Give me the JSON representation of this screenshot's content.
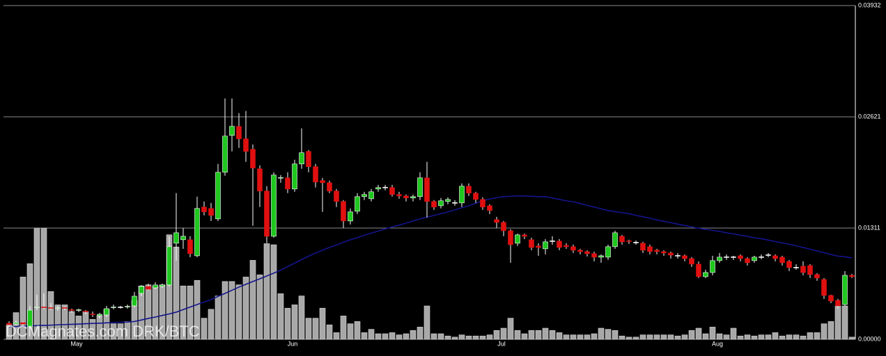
{
  "chart_data": {
    "type": "candlestick",
    "watermark": "DCMagnates.com DRK/BTC",
    "categories": [
      null,
      null,
      null,
      null,
      null,
      null,
      null,
      null,
      null,
      null,
      "May",
      null,
      null,
      null,
      null,
      null,
      null,
      null,
      null,
      null,
      null,
      null,
      null,
      null,
      null,
      null,
      null,
      null,
      null,
      null,
      null,
      null,
      null,
      null,
      null,
      null,
      null,
      null,
      null,
      null,
      null,
      "Jun",
      null,
      null,
      null,
      null,
      null,
      null,
      null,
      null,
      null,
      null,
      null,
      null,
      null,
      null,
      null,
      null,
      null,
      null,
      null,
      null,
      null,
      null,
      null,
      null,
      null,
      null,
      null,
      null,
      null,
      "Jul",
      null,
      null,
      null,
      null,
      null,
      null,
      null,
      null,
      null,
      null,
      null,
      null,
      null,
      null,
      null,
      null,
      null,
      null,
      null,
      null,
      null,
      null,
      null,
      null,
      null,
      null,
      null,
      null,
      null,
      null,
      "Aug",
      null,
      null,
      null,
      null,
      null,
      null,
      null,
      null,
      null,
      null,
      null,
      null,
      null,
      null,
      null,
      null,
      null,
      null,
      null
    ],
    "open": [
      0.00189,
      0.0018,
      0.00197,
      0.00148,
      0.00369,
      0.00377,
      0.00369,
      0.00361,
      0.00369,
      0.00344,
      0.00336,
      0.00328,
      0.00295,
      0.00279,
      0.00287,
      0.00369,
      0.00377,
      0.00377,
      0.00394,
      0.00541,
      0.00623,
      0.00607,
      0.00623,
      0.0064,
      0.01132,
      0.01173,
      0.01173,
      0.00984,
      0.01558,
      0.01542,
      0.01419,
      0.01968,
      0.02403,
      0.02509,
      0.02362,
      0.02239,
      0.02009,
      0.01747,
      0.01214,
      0.01894,
      0.01902,
      0.01771,
      0.02066,
      0.02214,
      0.02034,
      0.0187,
      0.01845,
      0.01747,
      0.01624,
      0.01394,
      0.01509,
      0.01681,
      0.01656,
      0.01771,
      0.01788,
      0.01788,
      0.01706,
      0.01689,
      0.01665,
      0.01681,
      0.01902,
      0.01624,
      0.01574,
      0.01624,
      0.01607,
      0.01607,
      0.01804,
      0.01722,
      0.01648,
      0.01574,
      0.0141,
      0.01378,
      0.01279,
      0.01132,
      0.0123,
      0.01173,
      0.01099,
      0.01066,
      0.01156,
      0.01156,
      0.01107,
      0.01091,
      0.0105,
      0.01033,
      0.01009,
      0.00968,
      0.00968,
      0.01091,
      0.01214,
      0.01156,
      0.0114,
      0.01132,
      0.01091,
      0.0105,
      0.01033,
      0.01017,
      0.00984,
      0.00984,
      0.00951,
      0.00886,
      0.00738,
      0.00787,
      0.00927,
      0.00968,
      0.00968,
      0.00984,
      0.00951,
      0.00927,
      0.00968,
      0.00992,
      0.00984,
      0.00968,
      0.00918,
      0.00845,
      0.00861,
      0.00869,
      0.00763,
      0.00705,
      0.00517,
      0.00459,
      0.0041,
      0.00754
    ],
    "high": [
      0.00213,
      0.00221,
      0.00213,
      0.00394,
      0.00525,
      0.00541,
      0.00426,
      0.00394,
      0.00385,
      0.00361,
      0.00361,
      0.00344,
      0.00328,
      0.00312,
      0.00394,
      0.0041,
      0.00394,
      0.0041,
      0.00558,
      0.0064,
      0.00656,
      0.00672,
      0.00656,
      0.01214,
      0.01722,
      0.01312,
      0.01214,
      0.01681,
      0.01624,
      0.01607,
      0.02066,
      0.02837,
      0.02837,
      0.02665,
      0.0269,
      0.02296,
      0.0205,
      0.01804,
      0.01968,
      0.01935,
      0.01968,
      0.02116,
      0.02485,
      0.0223,
      0.02066,
      0.01902,
      0.0187,
      0.01771,
      0.0164,
      0.01542,
      0.01722,
      0.01738,
      0.01771,
      0.0182,
      0.0182,
      0.0182,
      0.01738,
      0.01706,
      0.01706,
      0.01968,
      0.02091,
      0.0164,
      0.01665,
      0.01673,
      0.0164,
      0.01837,
      0.01837,
      0.01738,
      0.01673,
      0.01591,
      0.01443,
      0.01394,
      0.01296,
      0.01246,
      0.01246,
      0.01197,
      0.01132,
      0.01181,
      0.01214,
      0.01181,
      0.01132,
      0.01115,
      0.01066,
      0.0105,
      0.01033,
      0.01,
      0.01115,
      0.01279,
      0.0123,
      0.01173,
      0.01164,
      0.01148,
      0.01115,
      0.01066,
      0.0105,
      0.01033,
      0.01017,
      0.01,
      0.00968,
      0.00918,
      0.0082,
      0.00984,
      0.01017,
      0.01,
      0.00984,
      0.01,
      0.00968,
      0.00984,
      0.01,
      0.01017,
      0.01,
      0.00984,
      0.00935,
      0.00886,
      0.00918,
      0.00886,
      0.00779,
      0.00722,
      0.00525,
      0.00476,
      0.00804,
      0.00771
    ],
    "low": [
      0.00148,
      0.00164,
      0.00156,
      0.00123,
      0.00344,
      0.00353,
      0.00344,
      0.00336,
      0.00344,
      0.00312,
      0.0032,
      0.00295,
      0.00262,
      0.00246,
      0.00262,
      0.00353,
      0.00361,
      0.00361,
      0.00377,
      0.00508,
      0.00574,
      0.0059,
      0.00607,
      0.00623,
      0.00927,
      0.01066,
      0.00968,
      0.00968,
      0.0146,
      0.01394,
      0.01394,
      0.01927,
      0.02214,
      0.02255,
      0.02091,
      0.01337,
      0.01558,
      0.01132,
      0.01197,
      0.01845,
      0.01722,
      0.01738,
      0.02009,
      0.01968,
      0.01788,
      0.01501,
      0.01722,
      0.01558,
      0.01312,
      0.01353,
      0.01476,
      0.0164,
      0.01624,
      0.01738,
      0.01755,
      0.01681,
      0.01656,
      0.01624,
      0.01624,
      0.0164,
      0.01435,
      0.01525,
      0.01542,
      0.01591,
      0.01574,
      0.01558,
      0.01689,
      0.01607,
      0.01525,
      0.01476,
      0.01312,
      0.01214,
      0.00902,
      0.01099,
      0.01181,
      0.0105,
      0.00984,
      0.01,
      0.01115,
      0.0105,
      0.01066,
      0.01017,
      0.01,
      0.00976,
      0.00918,
      0.00902,
      0.00935,
      0.01066,
      0.01115,
      0.01123,
      0.01115,
      0.01017,
      0.01,
      0.01,
      0.00984,
      0.00951,
      0.00951,
      0.00918,
      0.00853,
      0.00722,
      0.00722,
      0.00754,
      0.00902,
      0.00935,
      0.00935,
      0.00918,
      0.00869,
      0.00902,
      0.00943,
      0.00968,
      0.00918,
      0.00869,
      0.00804,
      0.0082,
      0.00754,
      0.00722,
      0.00689,
      0.00476,
      0.00426,
      0.00361,
      0.00394,
      0.00722
    ],
    "close": [
      0.00172,
      0.00197,
      0.0018,
      0.00344,
      0.00377,
      0.00369,
      0.00361,
      0.00369,
      0.00361,
      0.00336,
      0.00344,
      0.0032,
      0.00287,
      0.00295,
      0.00361,
      0.00377,
      0.00377,
      0.00385,
      0.00508,
      0.00623,
      0.0059,
      0.0064,
      0.0064,
      0.01091,
      0.01255,
      0.01214,
      0.01009,
      0.01542,
      0.01501,
      0.0146,
      0.01968,
      0.02394,
      0.02509,
      0.02362,
      0.02214,
      0.02017,
      0.01747,
      0.01214,
      0.01935,
      0.01902,
      0.01771,
      0.02066,
      0.02198,
      0.02034,
      0.01853,
      0.01845,
      0.01747,
      0.01624,
      0.01394,
      0.01501,
      0.01681,
      0.01706,
      0.01738,
      0.01788,
      0.01788,
      0.01706,
      0.01689,
      0.01665,
      0.01681,
      0.01902,
      0.01624,
      0.01558,
      0.01632,
      0.01648,
      0.01607,
      0.01804,
      0.01722,
      0.01648,
      0.01558,
      0.01517,
      0.01378,
      0.01279,
      0.01115,
      0.0123,
      0.01214,
      0.01082,
      0.01082,
      0.01148,
      0.01156,
      0.01082,
      0.01091,
      0.0105,
      0.01033,
      0.01009,
      0.00968,
      0.00984,
      0.01091,
      0.01255,
      0.01148,
      0.01148,
      0.0114,
      0.0105,
      0.01033,
      0.01033,
      0.01017,
      0.00992,
      0.00984,
      0.00951,
      0.00886,
      0.00738,
      0.00787,
      0.00927,
      0.00968,
      0.00968,
      0.00968,
      0.00951,
      0.00902,
      0.00968,
      0.00968,
      0.00992,
      0.00951,
      0.00902,
      0.00845,
      0.00845,
      0.00787,
      0.00763,
      0.00722,
      0.00517,
      0.00451,
      0.00394,
      0.00754,
      0.00738
    ],
    "up_color": "#1ec81e",
    "down_color": "#e01010",
    "flat_color": "#ffffff",
    "volume": {
      "color": "#a8a8a8",
      "axis": "y2",
      "values": [
        13,
        24,
        56,
        68,
        100,
        100,
        43,
        31,
        31,
        25,
        21,
        25,
        18,
        21,
        27,
        14,
        14,
        16,
        35,
        48,
        49,
        48,
        49,
        94,
        83,
        48,
        48,
        53,
        19,
        27,
        39,
        52,
        52,
        49,
        56,
        71,
        58,
        86,
        85,
        41,
        28,
        31,
        39,
        19,
        19,
        28,
        13,
        6,
        21,
        14,
        16,
        6,
        9,
        5,
        5,
        6,
        4,
        5,
        8,
        11,
        30,
        5,
        5,
        3,
        2,
        4,
        3,
        3,
        3,
        4,
        8,
        10,
        19,
        8,
        5,
        8,
        8,
        10,
        8,
        6,
        4,
        4,
        4,
        4,
        5,
        10,
        9,
        8,
        3,
        2,
        2,
        4,
        4,
        4,
        4,
        4,
        3,
        4,
        8,
        10,
        5,
        11,
        5,
        4,
        10,
        3,
        4,
        3,
        4,
        4,
        6,
        3,
        4,
        4,
        3,
        6,
        6,
        14,
        16,
        30,
        30,
        2
      ]
    },
    "moving_average": {
      "color": "#14148c",
      "values": [
        0.00148,
        0.00151,
        0.00154,
        0.00157,
        0.00161,
        0.00164,
        0.00167,
        0.00171,
        0.00174,
        0.00177,
        0.0018,
        0.00184,
        0.00187,
        0.0019,
        0.00194,
        0.00197,
        0.002,
        0.00203,
        0.0021,
        0.00228,
        0.00246,
        0.00262,
        0.00281,
        0.00299,
        0.0032,
        0.0035,
        0.0038,
        0.0041,
        0.00439,
        0.00467,
        0.00506,
        0.00541,
        0.00578,
        0.00615,
        0.00648,
        0.00681,
        0.00713,
        0.00746,
        0.00779,
        0.00816,
        0.00857,
        0.00898,
        0.00939,
        0.0098,
        0.01017,
        0.0105,
        0.01082,
        0.01111,
        0.01144,
        0.01173,
        0.01197,
        0.01226,
        0.01251,
        0.01275,
        0.013,
        0.01324,
        0.01345,
        0.01369,
        0.01394,
        0.01419,
        0.01439,
        0.0146,
        0.0148,
        0.01501,
        0.01525,
        0.0155,
        0.01574,
        0.01603,
        0.01632,
        0.01652,
        0.01669,
        0.01681,
        0.01685,
        0.01689,
        0.01689,
        0.01685,
        0.01681,
        0.01681,
        0.01665,
        0.01648,
        0.01632,
        0.0162,
        0.01599,
        0.01579,
        0.01558,
        0.01538,
        0.01517,
        0.01505,
        0.01492,
        0.0148,
        0.0146,
        0.01443,
        0.01427,
        0.01406,
        0.0139,
        0.01374,
        0.01357,
        0.01341,
        0.01324,
        0.01308,
        0.01296,
        0.01283,
        0.01271,
        0.01255,
        0.01242,
        0.01226,
        0.01214,
        0.01197,
        0.01185,
        0.01169,
        0.01152,
        0.01136,
        0.01119,
        0.01103,
        0.01082,
        0.01062,
        0.01041,
        0.01021,
        0.01,
        0.0098,
        0.00972,
        0.00959
      ]
    },
    "ylim": [
      0,
      0.03932
    ],
    "yticks": [
      {
        "value": 0,
        "label": "0.00000"
      },
      0.01311,
      0.02621,
      0.03932
    ],
    "y2lim": [
      0,
      300
    ],
    "grid": true
  }
}
